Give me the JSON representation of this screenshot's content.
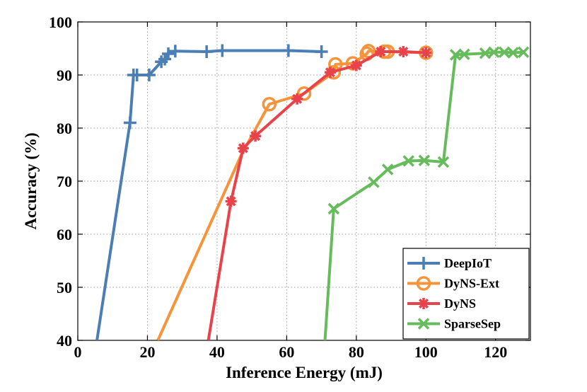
{
  "chart_data": {
    "type": "line",
    "title": "",
    "xlabel": "Inference Energy (mJ)",
    "ylabel": "Accuracy (%)",
    "xlim": [
      0,
      130
    ],
    "ylim": [
      40,
      100
    ],
    "xticks": [
      0,
      20,
      40,
      60,
      80,
      100,
      120
    ],
    "yticks": [
      40,
      50,
      60,
      70,
      80,
      90,
      100
    ],
    "grid": "dotted",
    "legend_position": "bottom-right",
    "series": [
      {
        "name": "DeepIoT",
        "color": "#4a7eb4",
        "marker": "plus",
        "x": [
          5.5,
          15,
          16,
          17,
          20.5,
          24,
          25,
          26,
          28,
          37,
          41.5,
          60.5,
          70
        ],
        "y": [
          40,
          81,
          90,
          90,
          90,
          92.5,
          93,
          94,
          94.5,
          94.4,
          94.6,
          94.6,
          94.4
        ],
        "marker_indices": [
          1,
          2,
          3,
          4,
          5,
          6,
          7,
          8,
          9,
          10,
          11,
          12
        ]
      },
      {
        "name": "DyNS-Ext",
        "color": "#f5943a",
        "marker": "circle",
        "x": [
          23,
          47,
          55,
          65,
          73.5,
          74,
          79,
          83,
          83.5,
          88,
          89,
          100
        ],
        "y": [
          40,
          75,
          84.5,
          86.5,
          90.5,
          92,
          92.2,
          94,
          94.5,
          94.4,
          94.4,
          94.2
        ],
        "marker_indices": [
          2,
          3,
          4,
          5,
          6,
          7,
          8,
          9,
          10,
          11
        ]
      },
      {
        "name": "DyNS",
        "color": "#e8424a",
        "marker": "asterisk",
        "x": [
          37.5,
          44,
          47.5,
          51,
          63,
          72.5,
          80,
          87,
          93.5,
          100
        ],
        "y": [
          40,
          66.2,
          76.2,
          78.5,
          85.5,
          90.5,
          91.8,
          94.4,
          94.4,
          94.2
        ],
        "marker_indices": [
          1,
          2,
          3,
          4,
          5,
          6,
          7,
          8,
          9
        ]
      },
      {
        "name": "SparseSep",
        "color": "#66bb5b",
        "marker": "x",
        "x": [
          71,
          73.5,
          85,
          89,
          95,
          99.5,
          105,
          108.5,
          111,
          117,
          119.5,
          122.5,
          125,
          128
        ],
        "y": [
          40,
          64.8,
          69.8,
          72.2,
          73.8,
          73.9,
          73.6,
          93.8,
          93.9,
          94.1,
          94.3,
          94.3,
          94.2,
          94.3
        ],
        "marker_indices": [
          1,
          2,
          3,
          4,
          5,
          6,
          7,
          8,
          9,
          10,
          11,
          12,
          13
        ]
      }
    ]
  }
}
